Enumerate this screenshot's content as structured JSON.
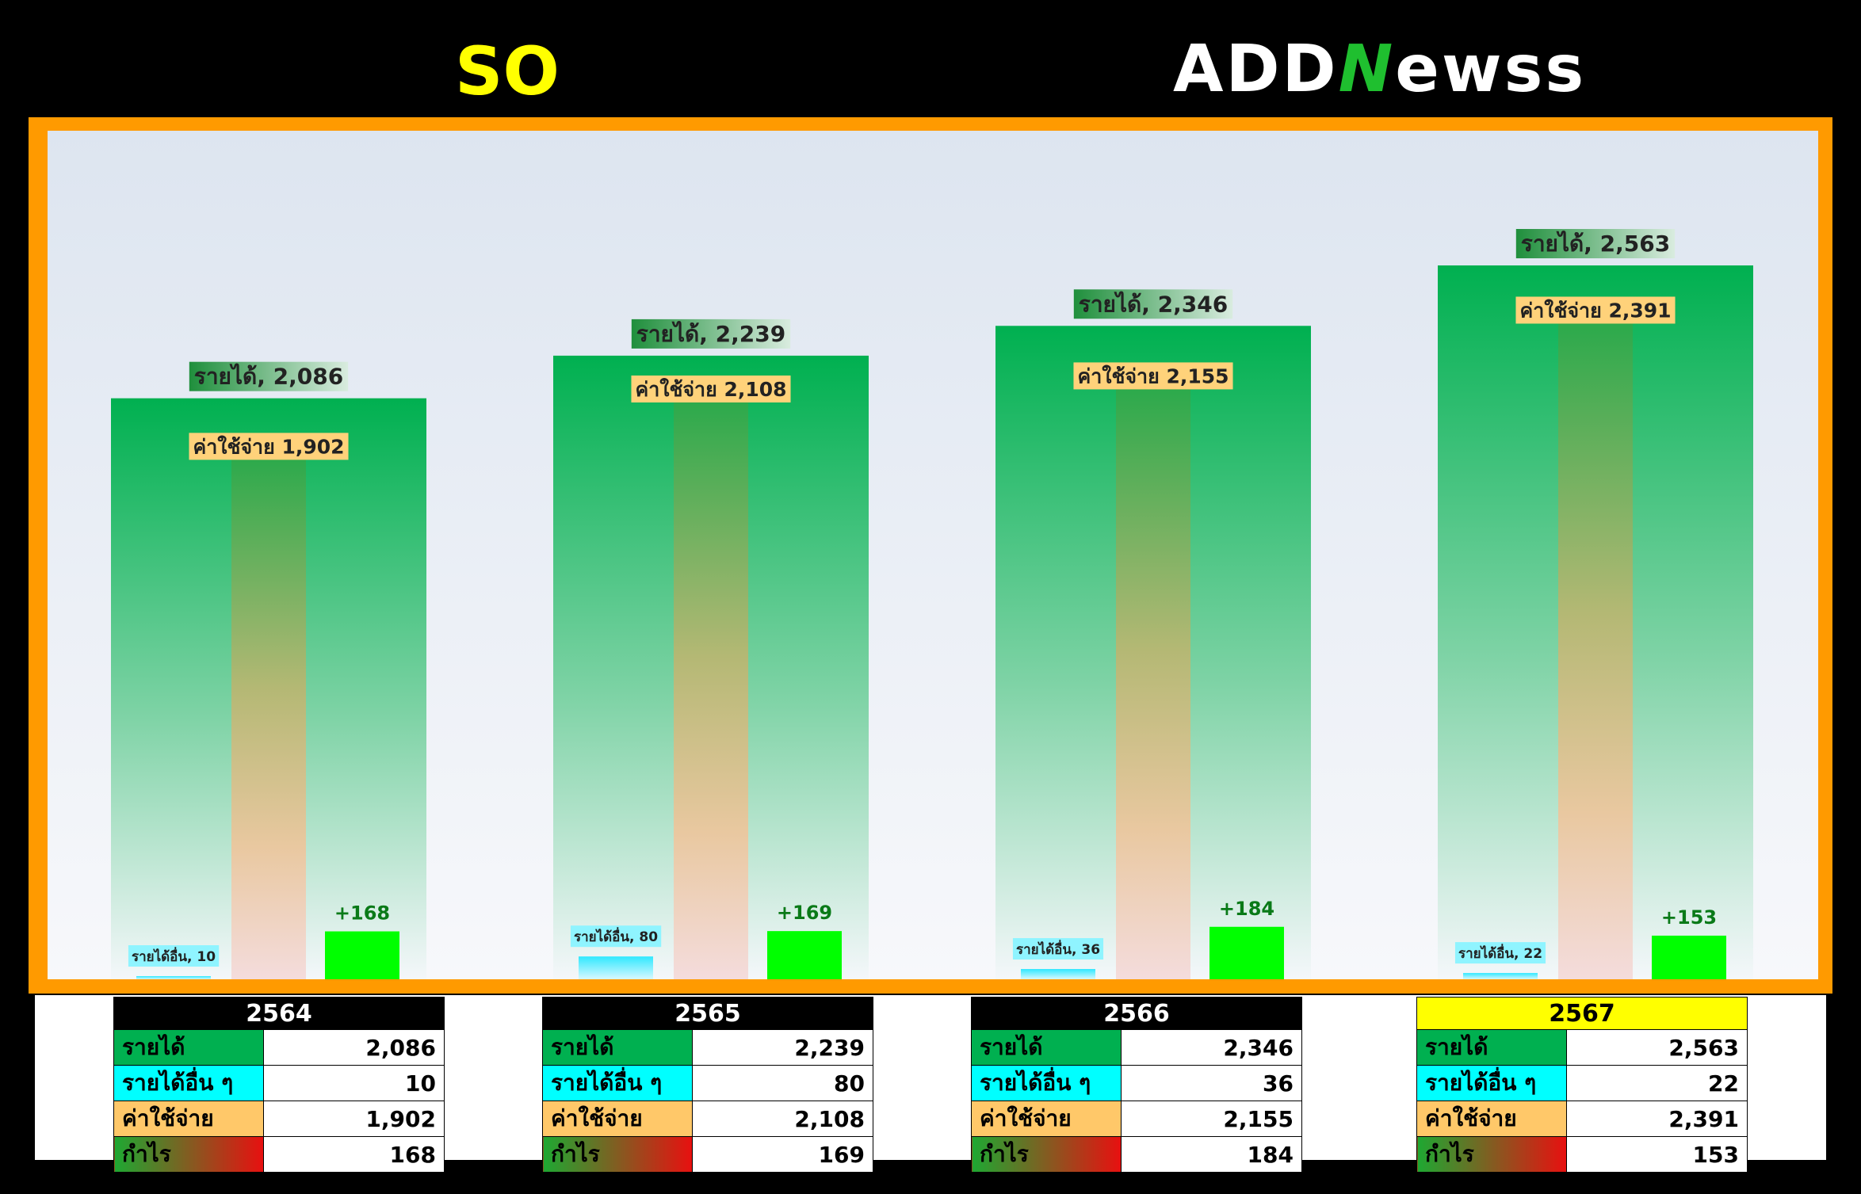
{
  "header": {
    "ticker": "SO",
    "logo": "ADDNewss",
    "logo_parts": [
      "ADD",
      "N",
      "ewss"
    ]
  },
  "colors": {
    "revenue": "#00b050",
    "other_income": "#00ffff",
    "expense": "#ffc869",
    "profit": "#00ff00",
    "frame": "#ff9a00",
    "ticker": "#ffff00",
    "highlight_year": "#ffff00"
  },
  "chart_data": {
    "type": "bar",
    "categories": [
      "2564",
      "2565",
      "2566",
      "2567"
    ],
    "ylim": [
      0,
      2900
    ],
    "grid": false,
    "series": [
      {
        "key": "revenue",
        "name": "รายได้",
        "values": [
          2086,
          2239,
          2346,
          2563
        ]
      },
      {
        "key": "other",
        "name": "รายได้อื่น",
        "values": [
          10,
          80,
          36,
          22
        ]
      },
      {
        "key": "expense",
        "name": "ค่าใช้จ่าย",
        "values": [
          1902,
          2108,
          2155,
          2391
        ]
      },
      {
        "key": "profit",
        "name": "",
        "values": [
          168,
          169,
          184,
          153
        ]
      }
    ],
    "labels": {
      "revenue": [
        "รายได้, 2,086",
        "รายได้, 2,239",
        "รายได้, 2,346",
        "รายได้, 2,563"
      ],
      "other": [
        "รายได้อื่น, 10",
        "รายได้อื่น, 80",
        "รายได้อื่น, 36",
        "รายได้อื่น, 22"
      ],
      "expense": [
        "ค่าใช้จ่าย 1,902",
        "ค่าใช้จ่าย 2,108",
        "ค่าใช้จ่าย 2,155",
        "ค่าใช้จ่าย 2,391"
      ],
      "profit": [
        "+168",
        "+169",
        "+184",
        "+153"
      ]
    }
  },
  "tables": [
    {
      "year": "2564",
      "highlight": false,
      "rows": [
        {
          "label": "รายได้",
          "value": "2,086"
        },
        {
          "label": "รายได้อื่น ๆ",
          "value": "10"
        },
        {
          "label": "ค่าใช้จ่าย",
          "value": "1,902"
        },
        {
          "label": "กำไร",
          "value": "168"
        }
      ]
    },
    {
      "year": "2565",
      "highlight": false,
      "rows": [
        {
          "label": "รายได้",
          "value": "2,239"
        },
        {
          "label": "รายได้อื่น ๆ",
          "value": "80"
        },
        {
          "label": "ค่าใช้จ่าย",
          "value": "2,108"
        },
        {
          "label": "กำไร",
          "value": "169"
        }
      ]
    },
    {
      "year": "2566",
      "highlight": false,
      "rows": [
        {
          "label": "รายได้",
          "value": "2,346"
        },
        {
          "label": "รายได้อื่น ๆ",
          "value": "36"
        },
        {
          "label": "ค่าใช้จ่าย",
          "value": "2,155"
        },
        {
          "label": "กำไร",
          "value": "184"
        }
      ]
    },
    {
      "year": "2567",
      "highlight": true,
      "rows": [
        {
          "label": "รายได้",
          "value": "2,563"
        },
        {
          "label": "รายได้อื่น ๆ",
          "value": "22"
        },
        {
          "label": "ค่าใช้จ่าย",
          "value": "2,391"
        },
        {
          "label": "กำไร",
          "value": "153"
        }
      ]
    }
  ]
}
